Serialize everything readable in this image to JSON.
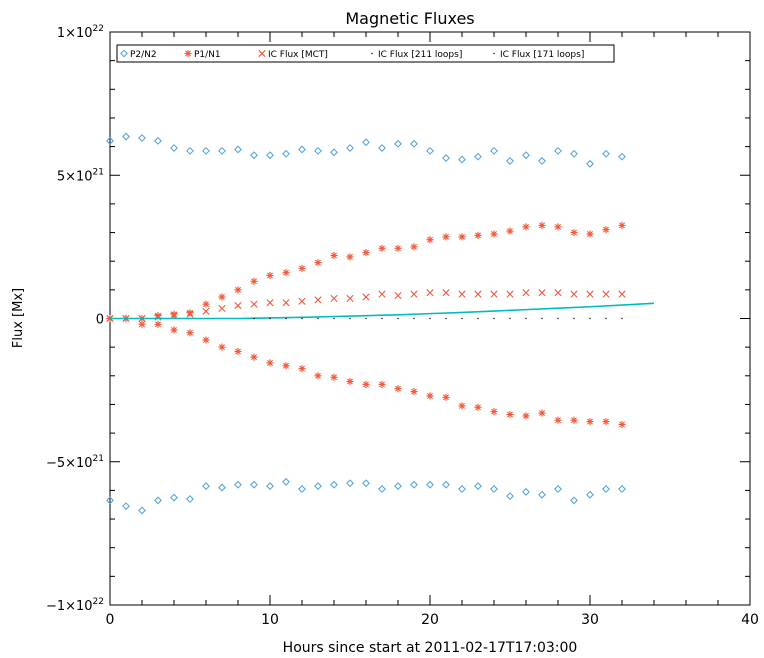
{
  "chart_data": {
    "type": "scatter",
    "title": "Magnetic Fluxes",
    "xlabel": "Hours since start at 2011-02-17T17:03:00",
    "ylabel": "Flux [Mx]",
    "xlim": [
      0,
      40
    ],
    "ylim": [
      -1e+22,
      1e+22
    ],
    "x_ticks": [
      0,
      10,
      20,
      30,
      40
    ],
    "x_tick_labels": [
      "0",
      "10",
      "20",
      "30",
      "40"
    ],
    "y_ticks": [
      {
        "value": 1e+22,
        "mant": "1×10",
        "exp": "22"
      },
      {
        "value": 5e+21,
        "mant": "5×10",
        "exp": "21"
      },
      {
        "value": 0,
        "mant": "0",
        "exp": ""
      },
      {
        "value": -5e+21,
        "mant": "−5×10",
        "exp": "21"
      },
      {
        "value": -1e+22,
        "mant": "−1×10",
        "exp": "22"
      }
    ],
    "grid": false,
    "legend_position": "top",
    "legend": [
      {
        "label": "P2/N2",
        "color": "#4a9fe0",
        "marker": "diamond"
      },
      {
        "label": "P1/N1",
        "color": "#f05a3c",
        "marker": "asterisk"
      },
      {
        "label": "IC Flux [MCT]",
        "color": "#f05a3c",
        "marker": "x"
      },
      {
        "label": "IC Flux [211 loops]",
        "color": "#000000",
        "marker": "dot"
      },
      {
        "label": "IC Flux [171 loops]",
        "color": "#000000",
        "marker": "dot"
      }
    ],
    "series": [
      {
        "key": "p2_pos",
        "color": "#4a9fe0",
        "marker": "diamond",
        "x": [
          0,
          1,
          2,
          3,
          4,
          5,
          6,
          7,
          8,
          9,
          10,
          11,
          12,
          13,
          14,
          15,
          16,
          17,
          18,
          19,
          20,
          21,
          22,
          23,
          24,
          25,
          26,
          27,
          28,
          29,
          30,
          31,
          32
        ],
        "y": [
          6.2e+21,
          6.35e+21,
          6.3e+21,
          6.2e+21,
          5.95e+21,
          5.85e+21,
          5.85e+21,
          5.85e+21,
          5.9e+21,
          5.7e+21,
          5.7e+21,
          5.75e+21,
          5.9e+21,
          5.85e+21,
          5.8e+21,
          5.95e+21,
          6.15e+21,
          5.95e+21,
          6.1e+21,
          6.1e+21,
          5.85e+21,
          5.6e+21,
          5.55e+21,
          5.65e+21,
          5.85e+21,
          5.5e+21,
          5.7e+21,
          5.5e+21,
          5.85e+21,
          5.75e+21,
          5.4e+21,
          5.75e+21,
          5.65e+21
        ]
      },
      {
        "key": "p2_neg",
        "color": "#4a9fe0",
        "marker": "diamond",
        "x": [
          0,
          1,
          2,
          3,
          4,
          5,
          6,
          7,
          8,
          9,
          10,
          11,
          12,
          13,
          14,
          15,
          16,
          17,
          18,
          19,
          20,
          21,
          22,
          23,
          24,
          25,
          26,
          27,
          28,
          29,
          30,
          31,
          32
        ],
        "y": [
          -6.35e+21,
          -6.55e+21,
          -6.7e+21,
          -6.35e+21,
          -6.25e+21,
          -6.3e+21,
          -5.85e+21,
          -5.9e+21,
          -5.8e+21,
          -5.8e+21,
          -5.85e+21,
          -5.7e+21,
          -5.95e+21,
          -5.85e+21,
          -5.8e+21,
          -5.75e+21,
          -5.75e+21,
          -5.95e+21,
          -5.85e+21,
          -5.8e+21,
          -5.8e+21,
          -5.8e+21,
          -5.95e+21,
          -5.85e+21,
          -5.95e+21,
          -6.2e+21,
          -6.05e+21,
          -6.15e+21,
          -5.95e+21,
          -6.35e+21,
          -6.15e+21,
          -5.95e+21,
          -5.95e+21
        ]
      },
      {
        "key": "p1_pos",
        "color": "#f05a3c",
        "marker": "asterisk",
        "x": [
          0,
          1,
          2,
          3,
          4,
          5,
          6,
          7,
          8,
          9,
          10,
          11,
          12,
          13,
          14,
          15,
          16,
          17,
          18,
          19,
          20,
          21,
          22,
          23,
          24,
          25,
          26,
          27,
          28,
          29,
          30,
          31,
          32
        ],
        "y": [
          0,
          0,
          0,
          1e+20,
          1.5e+20,
          2e+20,
          5e+20,
          7.5e+20,
          1e+21,
          1.3e+21,
          1.5e+21,
          1.6e+21,
          1.75e+21,
          1.95e+21,
          2.2e+21,
          2.15e+21,
          2.3e+21,
          2.45e+21,
          2.45e+21,
          2.5e+21,
          2.75e+21,
          2.85e+21,
          2.85e+21,
          2.9e+21,
          2.95e+21,
          3.05e+21,
          3.2e+21,
          3.25e+21,
          3.2e+21,
          3e+21,
          2.95e+21,
          3.1e+21,
          3.25e+21
        ]
      },
      {
        "key": "p1_neg",
        "color": "#f05a3c",
        "marker": "asterisk",
        "x": [
          0,
          1,
          2,
          3,
          4,
          5,
          6,
          7,
          8,
          9,
          10,
          11,
          12,
          13,
          14,
          15,
          16,
          17,
          18,
          19,
          20,
          21,
          22,
          23,
          24,
          25,
          26,
          27,
          28,
          29,
          30,
          31,
          32
        ],
        "y": [
          0,
          0,
          -2e+20,
          -2e+20,
          -4e+20,
          -5e+20,
          -7.5e+20,
          -1e+21,
          -1.15e+21,
          -1.35e+21,
          -1.55e+21,
          -1.65e+21,
          -1.75e+21,
          -2e+21,
          -2.05e+21,
          -2.2e+21,
          -2.3e+21,
          -2.3e+21,
          -2.45e+21,
          -2.55e+21,
          -2.7e+21,
          -2.75e+21,
          -3.05e+21,
          -3.1e+21,
          -3.25e+21,
          -3.35e+21,
          -3.4e+21,
          -3.3e+21,
          -3.55e+21,
          -3.55e+21,
          -3.6e+21,
          -3.6e+21,
          -3.7e+21
        ]
      },
      {
        "key": "ic_mct",
        "color": "#f05a3c",
        "marker": "x",
        "x": [
          0,
          1,
          2,
          3,
          4,
          5,
          6,
          7,
          8,
          9,
          10,
          11,
          12,
          13,
          14,
          15,
          16,
          17,
          18,
          19,
          20,
          21,
          22,
          23,
          24,
          25,
          26,
          27,
          28,
          29,
          30,
          31,
          32
        ],
        "y": [
          0,
          0,
          0,
          5e+19,
          1e+20,
          1.5e+20,
          2.5e+20,
          3.5e+20,
          4.5e+20,
          5e+20,
          5.5e+20,
          5.5e+20,
          6e+20,
          6.5e+20,
          7e+20,
          7e+20,
          7.5e+20,
          8.5e+20,
          8e+20,
          8.5e+20,
          9e+20,
          9e+20,
          8.5e+20,
          8.5e+20,
          8.5e+20,
          8.5e+20,
          9e+20,
          9e+20,
          9e+20,
          8.5e+20,
          8.5e+20,
          8.5e+20,
          8.5e+20
        ]
      },
      {
        "key": "ic_211_curve",
        "color": "#00bcbc",
        "marker": "line",
        "x": [
          0,
          2,
          4,
          6,
          8,
          10,
          12,
          14,
          16,
          18,
          20,
          22,
          24,
          26,
          28,
          30,
          32,
          34
        ],
        "y": [
          0,
          0,
          0,
          0,
          0,
          2e+19,
          4e+19,
          7e+19,
          1e+20,
          1.3e+20,
          1.7e+20,
          2.1e+20,
          2.6e+20,
          3.1e+20,
          3.6e+20,
          4.1e+20,
          4.7e+20,
          5.3e+20
        ]
      },
      {
        "key": "ic_dots",
        "color": "#000000",
        "marker": "dot",
        "x": [
          9,
          10,
          11,
          12,
          13,
          14,
          15,
          16,
          17,
          18,
          19,
          20,
          21,
          22,
          23,
          24,
          25,
          26,
          27,
          28,
          29,
          30,
          31,
          32
        ],
        "y": [
          0,
          0,
          0,
          0,
          0,
          0,
          0,
          0,
          0,
          0,
          0,
          0,
          0,
          0,
          0,
          0,
          0,
          0,
          0,
          0,
          0,
          0,
          0,
          0
        ]
      }
    ]
  }
}
